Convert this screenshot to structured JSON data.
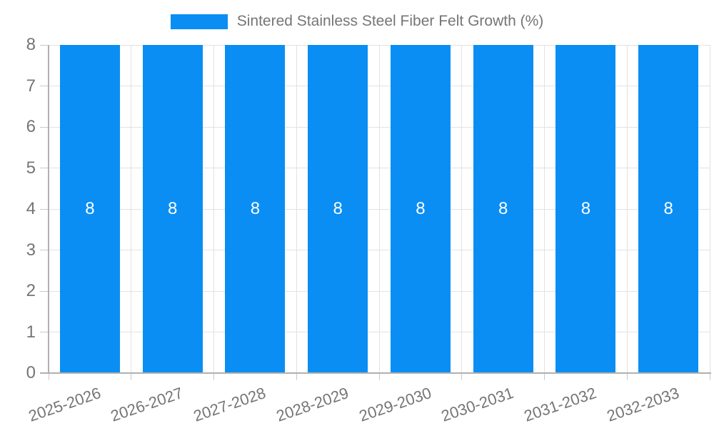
{
  "legend": {
    "label": "Sintered Stainless Steel Fiber Felt Growth (%)"
  },
  "chart_data": {
    "type": "bar",
    "title": "Sintered Stainless Steel Fiber Felt Growth (%)",
    "categories": [
      "2025-2026",
      "2026-2027",
      "2027-2028",
      "2028-2029",
      "2029-2030",
      "2030-2031",
      "2031-2032",
      "2032-2033"
    ],
    "series": [
      {
        "name": "Sintered Stainless Steel Fiber Felt Growth (%)",
        "values": [
          8,
          8,
          8,
          8,
          8,
          8,
          8,
          8
        ]
      }
    ],
    "bar_value_labels": [
      "8",
      "8",
      "8",
      "8",
      "8",
      "8",
      "8",
      "8"
    ],
    "xlabel": "",
    "ylabel": "",
    "ylim": [
      0,
      8
    ],
    "yticks": [
      0,
      1,
      2,
      3,
      4,
      5,
      6,
      7,
      8
    ],
    "grid": true,
    "legend_position": "top-center",
    "x_label_rotation_deg": -19,
    "colors": {
      "bar": "#0a8ef4",
      "bar_value_text": "#ffffff",
      "axis_text": "#757575",
      "legend_text": "#757575",
      "gridline": "#e2e2e2",
      "tick": "#c9c9c9",
      "axis_line": "#b0b0b0"
    }
  }
}
